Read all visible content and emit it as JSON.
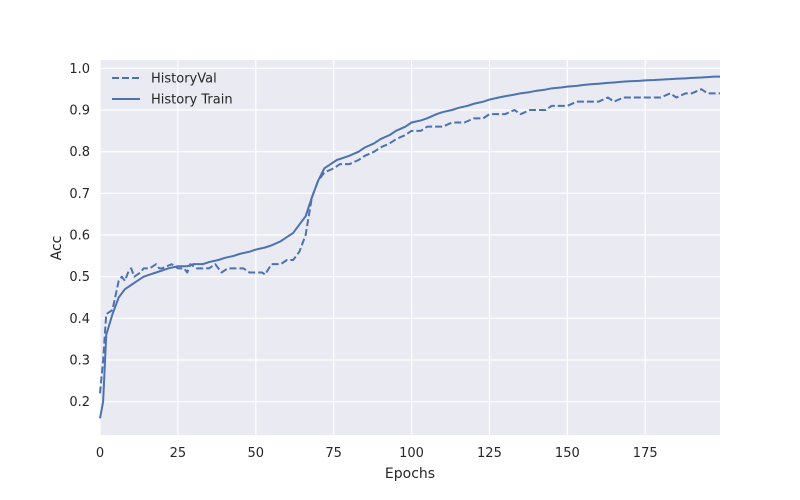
{
  "chart_data": {
    "type": "line",
    "title": "",
    "xlabel": "Epochs",
    "ylabel": "Acc",
    "xlim": [
      0,
      199
    ],
    "ylim": [
      0.12,
      1.02
    ],
    "xticks": [
      0,
      25,
      50,
      75,
      100,
      125,
      150,
      175
    ],
    "yticks": [
      0.2,
      0.3,
      0.4,
      0.5,
      0.6,
      0.7,
      0.8,
      0.9,
      1.0
    ],
    "grid": true,
    "legend_position": "top-left",
    "colors": {
      "plot_bg": "#eaeaf2",
      "grid": "#ffffff",
      "series": "#4c72b0"
    },
    "series": [
      {
        "name": "HistoryVal",
        "style": "dashed",
        "points": [
          [
            0,
            0.22
          ],
          [
            1,
            0.3
          ],
          [
            2,
            0.41
          ],
          [
            4,
            0.42
          ],
          [
            6,
            0.49
          ],
          [
            7,
            0.5
          ],
          [
            8,
            0.49
          ],
          [
            9,
            0.51
          ],
          [
            10,
            0.52
          ],
          [
            11,
            0.5
          ],
          [
            13,
            0.51
          ],
          [
            14,
            0.52
          ],
          [
            16,
            0.52
          ],
          [
            18,
            0.53
          ],
          [
            19,
            0.52
          ],
          [
            20,
            0.52
          ],
          [
            23,
            0.53
          ],
          [
            25,
            0.52
          ],
          [
            27,
            0.52
          ],
          [
            28,
            0.51
          ],
          [
            29,
            0.53
          ],
          [
            31,
            0.52
          ],
          [
            33,
            0.52
          ],
          [
            35,
            0.52
          ],
          [
            37,
            0.53
          ],
          [
            38,
            0.52
          ],
          [
            39,
            0.51
          ],
          [
            41,
            0.52
          ],
          [
            44,
            0.52
          ],
          [
            46,
            0.52
          ],
          [
            48,
            0.51
          ],
          [
            50,
            0.51
          ],
          [
            52,
            0.51
          ],
          [
            53,
            0.505
          ],
          [
            55,
            0.53
          ],
          [
            58,
            0.53
          ],
          [
            60,
            0.54
          ],
          [
            62,
            0.54
          ],
          [
            64,
            0.56
          ],
          [
            66,
            0.6
          ],
          [
            68,
            0.69
          ],
          [
            70,
            0.73
          ],
          [
            72,
            0.75
          ],
          [
            75,
            0.76
          ],
          [
            77,
            0.77
          ],
          [
            80,
            0.77
          ],
          [
            83,
            0.78
          ],
          [
            85,
            0.79
          ],
          [
            88,
            0.8
          ],
          [
            90,
            0.81
          ],
          [
            93,
            0.82
          ],
          [
            95,
            0.83
          ],
          [
            98,
            0.84
          ],
          [
            100,
            0.85
          ],
          [
            103,
            0.85
          ],
          [
            105,
            0.86
          ],
          [
            108,
            0.86
          ],
          [
            110,
            0.86
          ],
          [
            113,
            0.87
          ],
          [
            115,
            0.87
          ],
          [
            117,
            0.87
          ],
          [
            120,
            0.88
          ],
          [
            123,
            0.88
          ],
          [
            125,
            0.89
          ],
          [
            128,
            0.89
          ],
          [
            130,
            0.89
          ],
          [
            133,
            0.9
          ],
          [
            135,
            0.89
          ],
          [
            138,
            0.9
          ],
          [
            140,
            0.9
          ],
          [
            143,
            0.9
          ],
          [
            145,
            0.91
          ],
          [
            148,
            0.91
          ],
          [
            150,
            0.91
          ],
          [
            153,
            0.92
          ],
          [
            155,
            0.92
          ],
          [
            158,
            0.92
          ],
          [
            160,
            0.92
          ],
          [
            163,
            0.93
          ],
          [
            165,
            0.92
          ],
          [
            168,
            0.93
          ],
          [
            170,
            0.93
          ],
          [
            173,
            0.93
          ],
          [
            175,
            0.93
          ],
          [
            178,
            0.93
          ],
          [
            180,
            0.93
          ],
          [
            183,
            0.94
          ],
          [
            185,
            0.93
          ],
          [
            188,
            0.94
          ],
          [
            190,
            0.94
          ],
          [
            193,
            0.95
          ],
          [
            195,
            0.94
          ],
          [
            197,
            0.94
          ],
          [
            199,
            0.94
          ]
        ]
      },
      {
        "name": "History Train",
        "style": "solid",
        "points": [
          [
            0,
            0.16
          ],
          [
            1,
            0.2
          ],
          [
            2,
            0.36
          ],
          [
            4,
            0.41
          ],
          [
            6,
            0.45
          ],
          [
            8,
            0.47
          ],
          [
            10,
            0.48
          ],
          [
            12,
            0.49
          ],
          [
            14,
            0.5
          ],
          [
            16,
            0.505
          ],
          [
            18,
            0.51
          ],
          [
            20,
            0.515
          ],
          [
            22,
            0.52
          ],
          [
            25,
            0.525
          ],
          [
            28,
            0.525
          ],
          [
            30,
            0.53
          ],
          [
            33,
            0.53
          ],
          [
            35,
            0.535
          ],
          [
            38,
            0.54
          ],
          [
            40,
            0.545
          ],
          [
            43,
            0.55
          ],
          [
            45,
            0.555
          ],
          [
            48,
            0.56
          ],
          [
            50,
            0.565
          ],
          [
            53,
            0.57
          ],
          [
            55,
            0.575
          ],
          [
            58,
            0.585
          ],
          [
            60,
            0.595
          ],
          [
            62,
            0.605
          ],
          [
            64,
            0.625
          ],
          [
            66,
            0.645
          ],
          [
            68,
            0.69
          ],
          [
            70,
            0.73
          ],
          [
            72,
            0.76
          ],
          [
            74,
            0.77
          ],
          [
            76,
            0.78
          ],
          [
            78,
            0.785
          ],
          [
            80,
            0.79
          ],
          [
            83,
            0.8
          ],
          [
            85,
            0.81
          ],
          [
            88,
            0.82
          ],
          [
            90,
            0.83
          ],
          [
            93,
            0.84
          ],
          [
            95,
            0.85
          ],
          [
            98,
            0.86
          ],
          [
            100,
            0.87
          ],
          [
            103,
            0.875
          ],
          [
            105,
            0.88
          ],
          [
            108,
            0.89
          ],
          [
            110,
            0.895
          ],
          [
            113,
            0.9
          ],
          [
            115,
            0.905
          ],
          [
            118,
            0.91
          ],
          [
            120,
            0.915
          ],
          [
            123,
            0.92
          ],
          [
            125,
            0.925
          ],
          [
            128,
            0.93
          ],
          [
            130,
            0.933
          ],
          [
            133,
            0.937
          ],
          [
            135,
            0.94
          ],
          [
            138,
            0.943
          ],
          [
            140,
            0.946
          ],
          [
            143,
            0.949
          ],
          [
            145,
            0.952
          ],
          [
            148,
            0.954
          ],
          [
            150,
            0.956
          ],
          [
            153,
            0.958
          ],
          [
            155,
            0.96
          ],
          [
            158,
            0.962
          ],
          [
            160,
            0.963
          ],
          [
            163,
            0.965
          ],
          [
            165,
            0.966
          ],
          [
            168,
            0.968
          ],
          [
            170,
            0.969
          ],
          [
            173,
            0.97
          ],
          [
            175,
            0.971
          ],
          [
            178,
            0.972
          ],
          [
            180,
            0.973
          ],
          [
            183,
            0.974
          ],
          [
            185,
            0.975
          ],
          [
            188,
            0.976
          ],
          [
            190,
            0.977
          ],
          [
            193,
            0.978
          ],
          [
            195,
            0.979
          ],
          [
            197,
            0.98
          ],
          [
            199,
            0.98
          ]
        ]
      }
    ]
  }
}
